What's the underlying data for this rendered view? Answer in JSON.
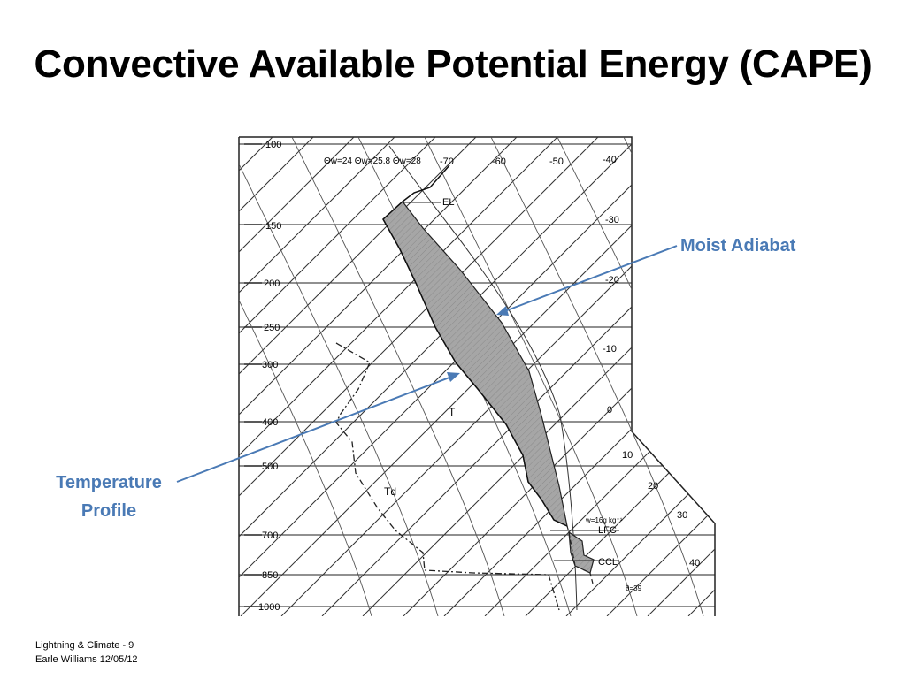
{
  "slide": {
    "title": "Convective Available Potential Energy (CAPE)"
  },
  "diagram": {
    "pressure_labels": [
      "100",
      "150",
      "200",
      "250",
      "300",
      "400",
      "500",
      "700",
      "850",
      "1000"
    ],
    "isotherm_labels": [
      "-70",
      "-60",
      "-50",
      "-40",
      "-30",
      "-20",
      "-10",
      "0",
      "10",
      "20",
      "30",
      "40"
    ],
    "header_text": "Θw=24 Θw=25.8 Θw=28",
    "level_labels": {
      "el": "EL",
      "lfc": "LFC",
      "ccl": "CCL"
    },
    "curve_labels": {
      "temperature": "T",
      "dewpoint": "Td"
    },
    "mixing_ratio_label": "w=16g kg⁻¹",
    "theta_label": "θ=39"
  },
  "callouts": {
    "moist_adiabat": "Moist Adiabat",
    "temperature_profile_line1": "Temperature",
    "temperature_profile_line2": "Profile"
  },
  "footer": {
    "line1": "Lightning & Climate - 9",
    "line2": "Earle Williams 12/05/12"
  },
  "colors": {
    "accent": "#4a7ab5",
    "shaded_area": "#a6a6a6",
    "line": "#222222"
  }
}
